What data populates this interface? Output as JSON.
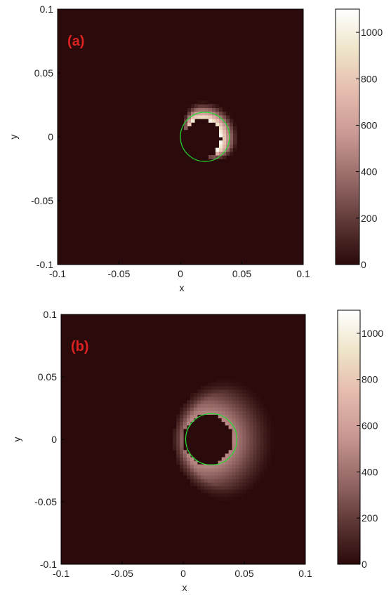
{
  "chart_data": [
    {
      "type": "heatmap",
      "panel_label": "(a)",
      "xlabel": "x",
      "ylabel": "y",
      "xlim": [
        -0.1,
        0.1
      ],
      "ylim": [
        -0.1,
        0.1
      ],
      "x_ticks": [
        {
          "value": -0.1,
          "label": "-0.1"
        },
        {
          "value": -0.05,
          "label": "-0.05"
        },
        {
          "value": 0,
          "label": "0"
        },
        {
          "value": 0.05,
          "label": "0.05"
        },
        {
          "value": 0.1,
          "label": "0.1"
        }
      ],
      "y_ticks": [
        {
          "value": 0.1,
          "label": "0.1"
        },
        {
          "value": 0.05,
          "label": "0.05"
        },
        {
          "value": 0,
          "label": "0"
        },
        {
          "value": -0.05,
          "label": "-0.05"
        },
        {
          "value": -0.1,
          "label": "-0.1"
        }
      ],
      "colorbar": {
        "range": [
          0,
          1100
        ],
        "ticks": [
          {
            "value": 0,
            "label": "0"
          },
          {
            "value": 200,
            "label": "200"
          },
          {
            "value": 400,
            "label": "400"
          },
          {
            "value": 600,
            "label": "600"
          },
          {
            "value": 800,
            "label": "800"
          },
          {
            "value": 1000,
            "label": "1000"
          }
        ]
      },
      "crescent": {
        "center": [
          0.03,
          0.01
        ],
        "radius": 0.027,
        "hole_center": [
          0.018,
          -0.001
        ],
        "hole_radius": 0.015,
        "peak": 1050
      },
      "circle": {
        "center": [
          0.02,
          0.0
        ],
        "radius": 0.02
      }
    },
    {
      "type": "heatmap",
      "panel_label": "(b)",
      "xlabel": "x",
      "ylabel": "y",
      "xlim": [
        -0.1,
        0.1
      ],
      "ylim": [
        -0.1,
        0.1
      ],
      "x_ticks": [
        {
          "value": -0.1,
          "label": "-0.1"
        },
        {
          "value": -0.05,
          "label": "-0.05"
        },
        {
          "value": 0,
          "label": "0"
        },
        {
          "value": 0.05,
          "label": "0.05"
        },
        {
          "value": 0.1,
          "label": "0.1"
        }
      ],
      "y_ticks": [
        {
          "value": 0.1,
          "label": "0.1"
        },
        {
          "value": 0.05,
          "label": "0.05"
        },
        {
          "value": 0,
          "label": "0"
        },
        {
          "value": -0.05,
          "label": "-0.05"
        },
        {
          "value": -0.1,
          "label": "-0.1"
        }
      ],
      "colorbar": {
        "range": [
          0,
          1100
        ],
        "ticks": [
          {
            "value": 0,
            "label": "0"
          },
          {
            "value": 200,
            "label": "200"
          },
          {
            "value": 400,
            "label": "400"
          },
          {
            "value": 600,
            "label": "600"
          },
          {
            "value": 800,
            "label": "800"
          },
          {
            "value": 1000,
            "label": "1000"
          }
        ]
      },
      "crescent": {
        "center": [
          0.042,
          0.0
        ],
        "radius": 0.05,
        "hole_center": [
          0.02,
          0.0
        ],
        "hole_radius": 0.02,
        "peak": 500
      },
      "circle": {
        "center": [
          0.023,
          0.0
        ],
        "radius": 0.021
      }
    }
  ]
}
